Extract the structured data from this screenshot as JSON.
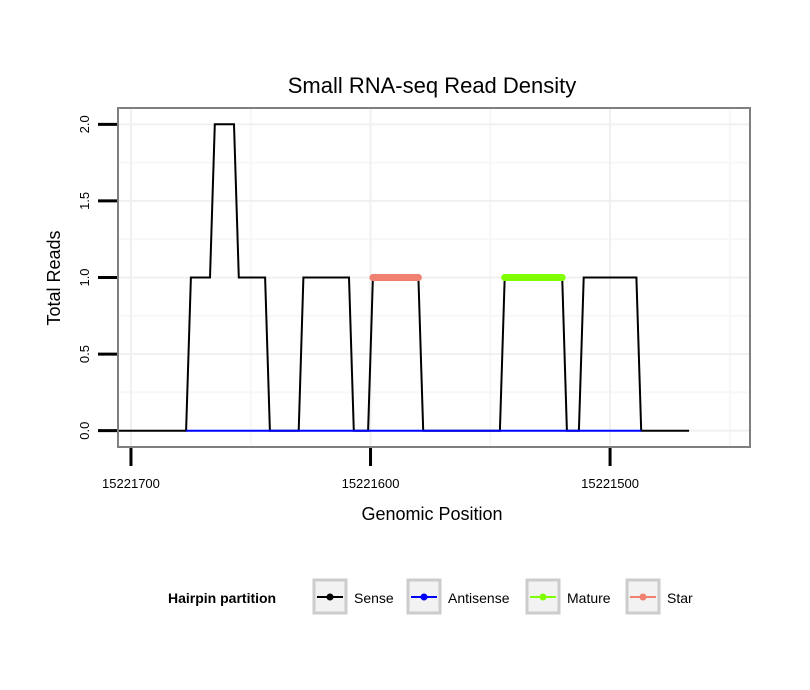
{
  "chart_data": {
    "type": "line",
    "title": "Small RNA-seq Read Density",
    "xlabel": "Genomic Position",
    "ylabel": "Total Reads",
    "x_reversed": true,
    "xlim": [
      15221705,
      15221442
    ],
    "ylim": [
      -0.1,
      2.1
    ],
    "x_ticks": [
      15221700,
      15221600,
      15221500
    ],
    "x_tick_labels": [
      "15221700",
      "15221600",
      "15221500"
    ],
    "y_ticks": [
      0.0,
      0.5,
      1.0,
      1.5,
      2.0
    ],
    "y_tick_labels": [
      "0.0",
      "0.5",
      "1.0",
      "1.5",
      "2.0"
    ],
    "grid": true,
    "legend": {
      "title": "Hairpin partition",
      "placement": "bottom",
      "entries": [
        {
          "name": "Sense",
          "color": "#000000"
        },
        {
          "name": "Antisense",
          "color": "#0000ff"
        },
        {
          "name": "Mature",
          "color": "#7fff00"
        },
        {
          "name": "Star",
          "color": "#f08070"
        }
      ]
    },
    "series": [
      {
        "name": "Sense",
        "color": "#000000",
        "x": [
          15221705,
          15221677,
          15221675,
          15221667,
          15221665,
          15221657,
          15221655,
          15221644,
          15221642,
          15221630,
          15221628,
          15221609,
          15221607,
          15221601,
          15221599,
          15221580,
          15221578,
          15221546,
          15221544,
          15221520,
          15221518,
          15221513,
          15221511,
          15221489,
          15221487,
          15221467
        ],
        "y": [
          0,
          0,
          1,
          1,
          2,
          2,
          1,
          1,
          0,
          0,
          1,
          1,
          0,
          0,
          1,
          1,
          0,
          0,
          1,
          1,
          0,
          0,
          1,
          1,
          0,
          0
        ]
      },
      {
        "name": "Antisense",
        "color": "#0000ff",
        "x": [
          15221677,
          15221487
        ],
        "y": [
          0,
          0
        ]
      },
      {
        "name": "Mature",
        "color": "#7fff00",
        "x": [
          15221544,
          15221520
        ],
        "y": [
          1,
          1
        ]
      },
      {
        "name": "Star",
        "color": "#f08070",
        "x": [
          15221599,
          15221580
        ],
        "y": [
          1,
          1
        ]
      }
    ]
  }
}
